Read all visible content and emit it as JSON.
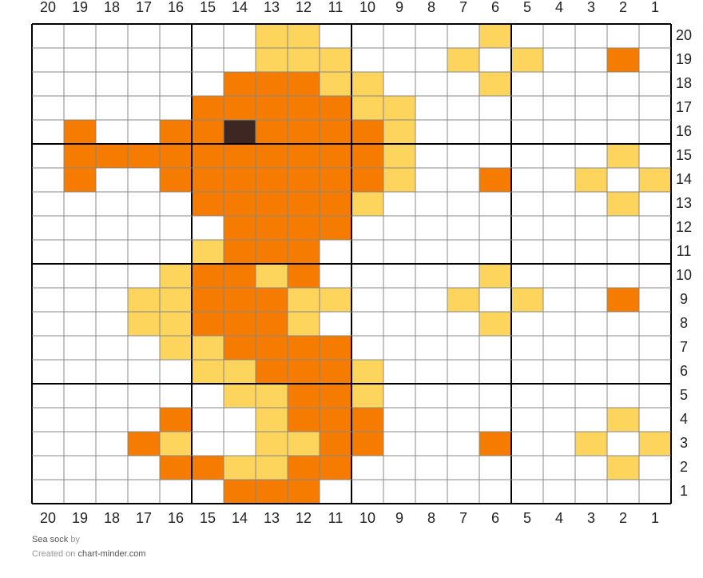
{
  "grid": {
    "columns": [
      20,
      19,
      18,
      17,
      16,
      15,
      14,
      13,
      12,
      11,
      10,
      9,
      8,
      7,
      6,
      5,
      4,
      3,
      2,
      1
    ],
    "row_labels": [
      20,
      19,
      18,
      17,
      16,
      15,
      14,
      13,
      12,
      11,
      10,
      9,
      8,
      7,
      6,
      5,
      4,
      3,
      2,
      1
    ],
    "palette": {
      "W": "#ffffff",
      "Y": "#fdd55c",
      "O": "#f57c00",
      "B": "#3e2723"
    },
    "rows": [
      "WWWWWWWYYWWWWWYWWWWW",
      "WWWWWWWYYYWWWYWYWWOW",
      "WWWWWWOOOYYWWWYWWWWW",
      "WWWWWOOOOOYYWWWWWWWW",
      "WOWWOOBOOOOYWWWWWWWW",
      "WOOOOOOOOOOYWWWWWWYW",
      "WOWWOOOOOOOYWWOWWYWY",
      "WWWWWOOOOOYWWWWWWWYW",
      "WWWWWWOOOOWWWWWWWWWW",
      "WWWWWYOOOWWWWWWWWWWW",
      "WWWWYOOYOWWWWWYWWWWW",
      "WWWYYOOOYYWWWYWYWWOW",
      "WWWYYOOOYWWWWWYWWWWW",
      "WWWWYYOOOOWWWWWWWWWW",
      "WWWWWYYOOOYWWWWWWWWW",
      "WWWWWWYYOOYWWWWWWWWW",
      "WWWWOWWYOOOWWWWWWWYW",
      "WWWOYWWYYOOWWWOWWYWY",
      "WWWWOOYYOOWWWWWWWWYW",
      "WWWWWWOOOWWWWWWWWWWW"
    ]
  },
  "footer": {
    "title": "Sea sock",
    "by": "by",
    "created": "Created on",
    "site": "chart-minder.com"
  }
}
